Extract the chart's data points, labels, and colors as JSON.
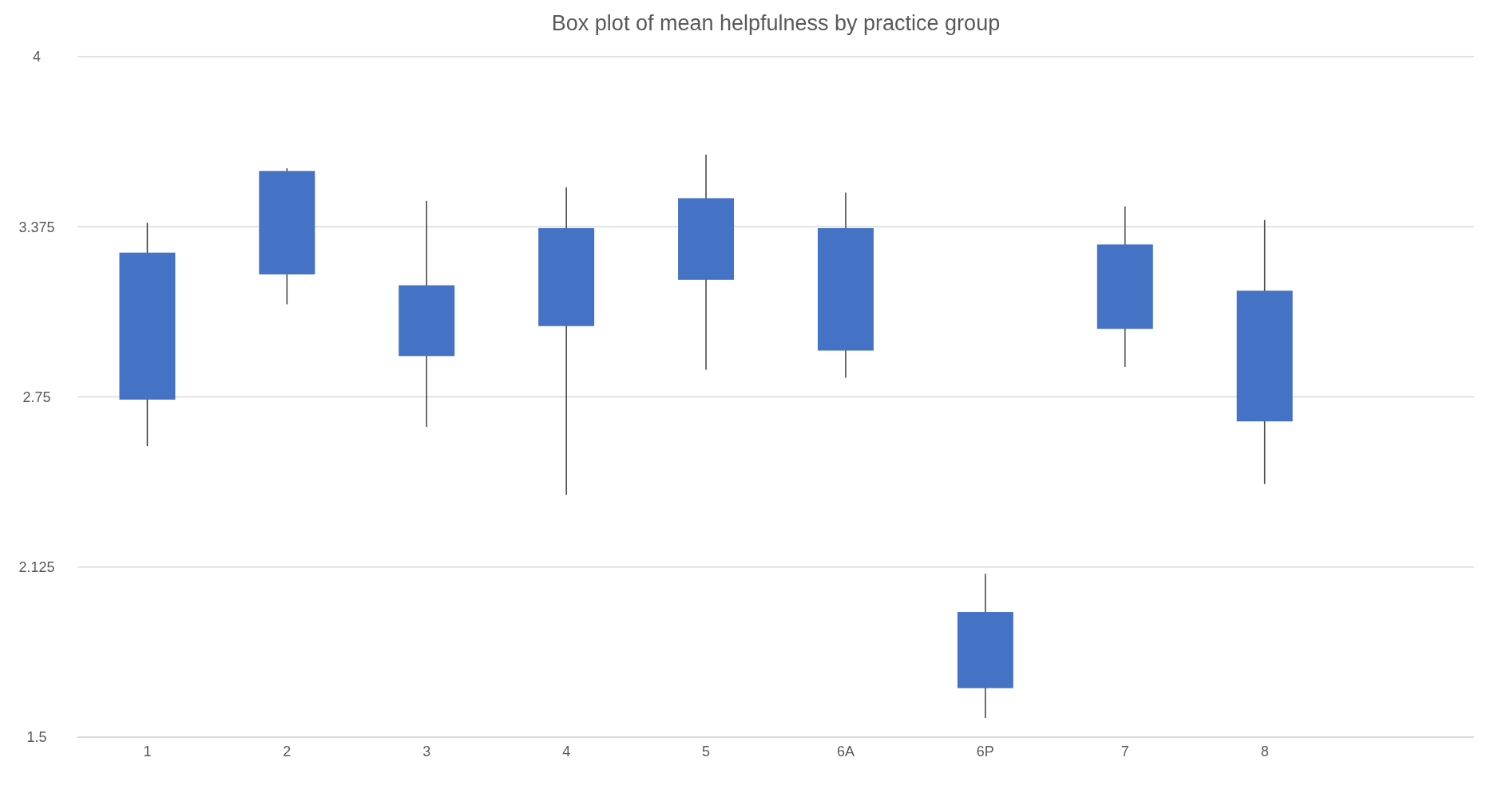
{
  "chart_data": {
    "type": "candlestick",
    "title": "Box plot of mean helpfulness by practice group",
    "categories": [
      "1",
      "2",
      "3",
      "4",
      "5",
      "6A",
      "6P",
      "7",
      "8",
      null
    ],
    "ohlc": [
      [
        2.74,
        3.39,
        2.57,
        3.28
      ],
      [
        3.2,
        3.59,
        3.09,
        3.58
      ],
      [
        2.9,
        3.47,
        2.64,
        3.16
      ],
      [
        3.01,
        3.52,
        2.39,
        3.37
      ],
      [
        3.18,
        3.64,
        2.85,
        3.48
      ],
      [
        2.92,
        3.5,
        2.82,
        3.37
      ],
      [
        1.68,
        2.1,
        1.57,
        1.96
      ],
      [
        3.0,
        3.45,
        2.86,
        3.31
      ],
      [
        2.66,
        3.4,
        2.43,
        3.14
      ],
      null
    ],
    "color": "#4472c4",
    "ylim": [
      1.5,
      4
    ],
    "yticks": [
      1.5,
      2.125,
      2.75,
      3.375,
      4
    ],
    "grid": "y"
  }
}
